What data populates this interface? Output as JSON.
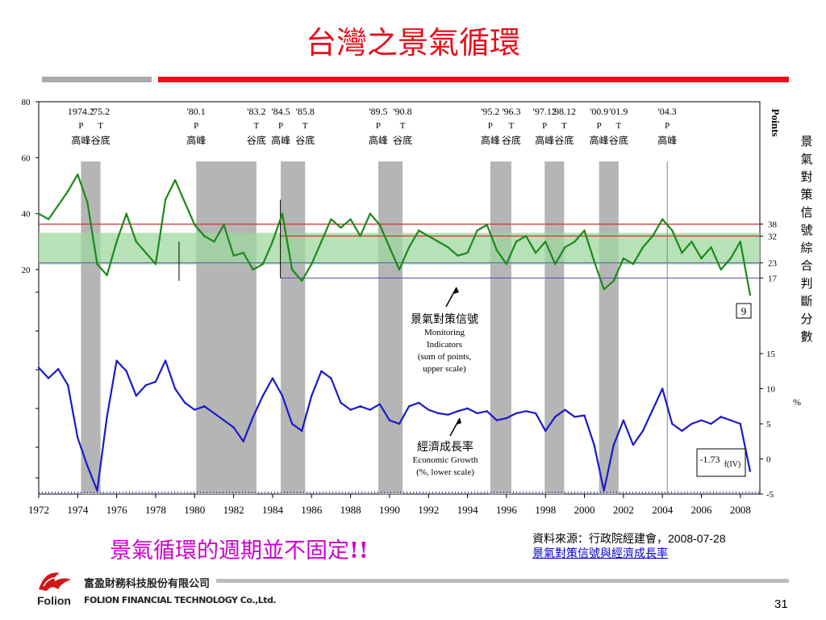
{
  "title": "台灣之景氣循環",
  "subtitle": "景氣循環的週期並不固定",
  "subtitle_bang": "!!",
  "source_text": "資料來源：行政院經建會，2008-07-28",
  "source_link": "景氣對策信號與經濟成長率",
  "page_number": "31",
  "company": {
    "name_cn": "富盈財務科技股份有限公司",
    "name_en": "FOLION FINANCIAL TECHNOLOGY Co.,Ltd.",
    "logo_word": "Folion"
  },
  "colors": {
    "title": "#e8101a",
    "subtitle": "#cc00cc",
    "signal_line": "#1a8a1a",
    "growth_line": "#1a1acc",
    "band": "#9fd79f",
    "recession": "#b5b5b5",
    "red_line": "#d43030",
    "blue_line": "#5050b0"
  },
  "chart_data": {
    "type": "line",
    "x_ticks": [
      "1972",
      "1974",
      "1976",
      "1978",
      "1980",
      "1982",
      "1984",
      "1986",
      "1988",
      "1990",
      "1992",
      "1994",
      "1996",
      "1998",
      "2000",
      "2002",
      "2004",
      "2006",
      "2008"
    ],
    "upper_scale": {
      "ticks": [
        20,
        40,
        60,
        80
      ],
      "right_ticks": [
        38,
        32,
        23,
        17
      ],
      "label": "Points"
    },
    "lower_scale": {
      "ticks": [
        -5,
        0,
        5,
        10,
        15
      ],
      "label": "%"
    },
    "turning_points": [
      {
        "date": "1974.2",
        "code": "P",
        "name": "高峰",
        "t": 1974.17
      },
      {
        "date": "'75.2",
        "code": "T",
        "name": "谷底",
        "t": 1975.17
      },
      {
        "date": "'80.1",
        "code": "P",
        "name": "高峰",
        "t": 1980.08
      },
      {
        "date": "'83.2",
        "code": "T",
        "name": "谷底",
        "t": 1983.17
      },
      {
        "date": "'84.5",
        "code": "P",
        "name": "高峰",
        "t": 1984.42
      },
      {
        "date": "'85.8",
        "code": "T",
        "name": "谷底",
        "t": 1985.67
      },
      {
        "date": "'89.5",
        "code": "P",
        "name": "高峰",
        "t": 1989.42
      },
      {
        "date": "'90.8",
        "code": "T",
        "name": "谷底",
        "t": 1990.67
      },
      {
        "date": "'95.2",
        "code": "P",
        "name": "高峰",
        "t": 1995.17
      },
      {
        "date": "'96.3",
        "code": "T",
        "name": "谷底",
        "t": 1996.25
      },
      {
        "date": "'97.12",
        "code": "P",
        "name": "高峰",
        "t": 1997.96
      },
      {
        "date": "'98.12",
        "code": "T",
        "name": "谷底",
        "t": 1998.96
      },
      {
        "date": "'00.9",
        "code": "P",
        "name": "高峰",
        "t": 2000.75
      },
      {
        "date": "'01.9",
        "code": "T",
        "name": "谷底",
        "t": 2001.75
      },
      {
        "date": "'04.3",
        "code": "P",
        "name": "高峰",
        "t": 2004.25
      }
    ],
    "recessions": [
      [
        1974.17,
        1975.17
      ],
      [
        1980.08,
        1983.17
      ],
      [
        1984.42,
        1985.67
      ],
      [
        1989.42,
        1990.67
      ],
      [
        1995.17,
        1996.25
      ],
      [
        1997.96,
        1998.96
      ],
      [
        2000.75,
        2001.75
      ]
    ],
    "series": [
      {
        "name": "景氣對策信號",
        "label_lines": [
          "景氣對策信號",
          "Monitoring",
          "Indicators",
          "(sum of points,",
          "upper scale)"
        ],
        "scale": "upper",
        "x": [
          1972,
          1972.5,
          1973,
          1973.5,
          1974,
          1974.5,
          1975,
          1975.5,
          1976,
          1976.5,
          1977,
          1977.5,
          1978,
          1978.5,
          1979,
          1979.5,
          1980,
          1980.5,
          1981,
          1981.5,
          1982,
          1982.5,
          1983,
          1983.5,
          1984,
          1984.5,
          1985,
          1985.5,
          1986,
          1986.5,
          1987,
          1987.5,
          1988,
          1988.5,
          1989,
          1989.5,
          1990,
          1990.5,
          1991,
          1991.5,
          1992,
          1992.5,
          1993,
          1993.5,
          1994,
          1994.5,
          1995,
          1995.5,
          1996,
          1996.5,
          1997,
          1997.5,
          1998,
          1998.5,
          1999,
          1999.5,
          2000,
          2000.5,
          2001,
          2001.5,
          2002,
          2002.5,
          2003,
          2003.5,
          2004,
          2004.5,
          2005,
          2005.5,
          2006,
          2006.5,
          2007,
          2007.5,
          2008,
          2008.5
        ],
        "values": [
          40,
          38,
          43,
          48,
          54,
          44,
          22,
          18,
          30,
          40,
          30,
          26,
          22,
          45,
          52,
          44,
          36,
          32,
          30,
          36,
          25,
          26,
          20,
          22,
          30,
          40,
          20,
          16,
          22,
          30,
          38,
          35,
          38,
          32,
          40,
          36,
          28,
          20,
          28,
          34,
          32,
          30,
          28,
          25,
          26,
          34,
          36,
          27,
          22,
          30,
          32,
          26,
          30,
          22,
          28,
          30,
          34,
          23,
          13,
          16,
          24,
          22,
          28,
          32,
          38,
          34,
          26,
          30,
          24,
          28,
          20,
          24,
          30,
          11
        ]
      },
      {
        "name": "經濟成長率",
        "label_lines": [
          "經濟成長率",
          "Economic Growth",
          "(%, lower scale)"
        ],
        "scale": "lower",
        "x": [
          1972,
          1972.5,
          1973,
          1973.5,
          1974,
          1974.5,
          1975,
          1975.5,
          1976,
          1976.5,
          1977,
          1977.5,
          1978,
          1978.5,
          1979,
          1979.5,
          1980,
          1980.5,
          1981,
          1981.5,
          1982,
          1982.5,
          1983,
          1983.5,
          1984,
          1984.5,
          1985,
          1985.5,
          1986,
          1986.5,
          1987,
          1987.5,
          1988,
          1988.5,
          1989,
          1989.5,
          1990,
          1990.5,
          1991,
          1991.5,
          1992,
          1992.5,
          1993,
          1993.5,
          1994,
          1994.5,
          1995,
          1995.5,
          1996,
          1996.5,
          1997,
          1997.5,
          1998,
          1998.5,
          1999,
          1999.5,
          2000,
          2000.5,
          2001,
          2001.5,
          2002,
          2002.5,
          2003,
          2003.5,
          2004,
          2004.5,
          2005,
          2005.5,
          2006,
          2006.5,
          2007,
          2007.5,
          2008,
          2008.5
        ],
        "values": [
          13,
          11.5,
          12.8,
          10.5,
          3,
          -1,
          -4.5,
          6,
          14,
          12.5,
          9,
          10.5,
          11,
          14,
          10,
          8,
          7,
          7.5,
          6.5,
          5.5,
          4.5,
          2.5,
          6,
          9,
          11.5,
          9,
          5,
          4,
          9,
          12.5,
          11.5,
          8,
          7,
          7.5,
          7,
          7.8,
          5.5,
          5,
          7.5,
          8,
          7,
          6.5,
          6.3,
          6.8,
          7.2,
          6.5,
          6.8,
          5.5,
          5.8,
          6.5,
          6.8,
          6.5,
          4,
          6,
          7,
          6,
          6.2,
          2,
          -4.5,
          2,
          5.5,
          2,
          4,
          7,
          10,
          5,
          4,
          5,
          5.5,
          5,
          6,
          5.5,
          5,
          -1.73
        ]
      }
    ],
    "annotations": [
      "9",
      "-1.73",
      "f(IV)"
    ],
    "right_title": "景氣對策信號綜合判斷分數"
  }
}
